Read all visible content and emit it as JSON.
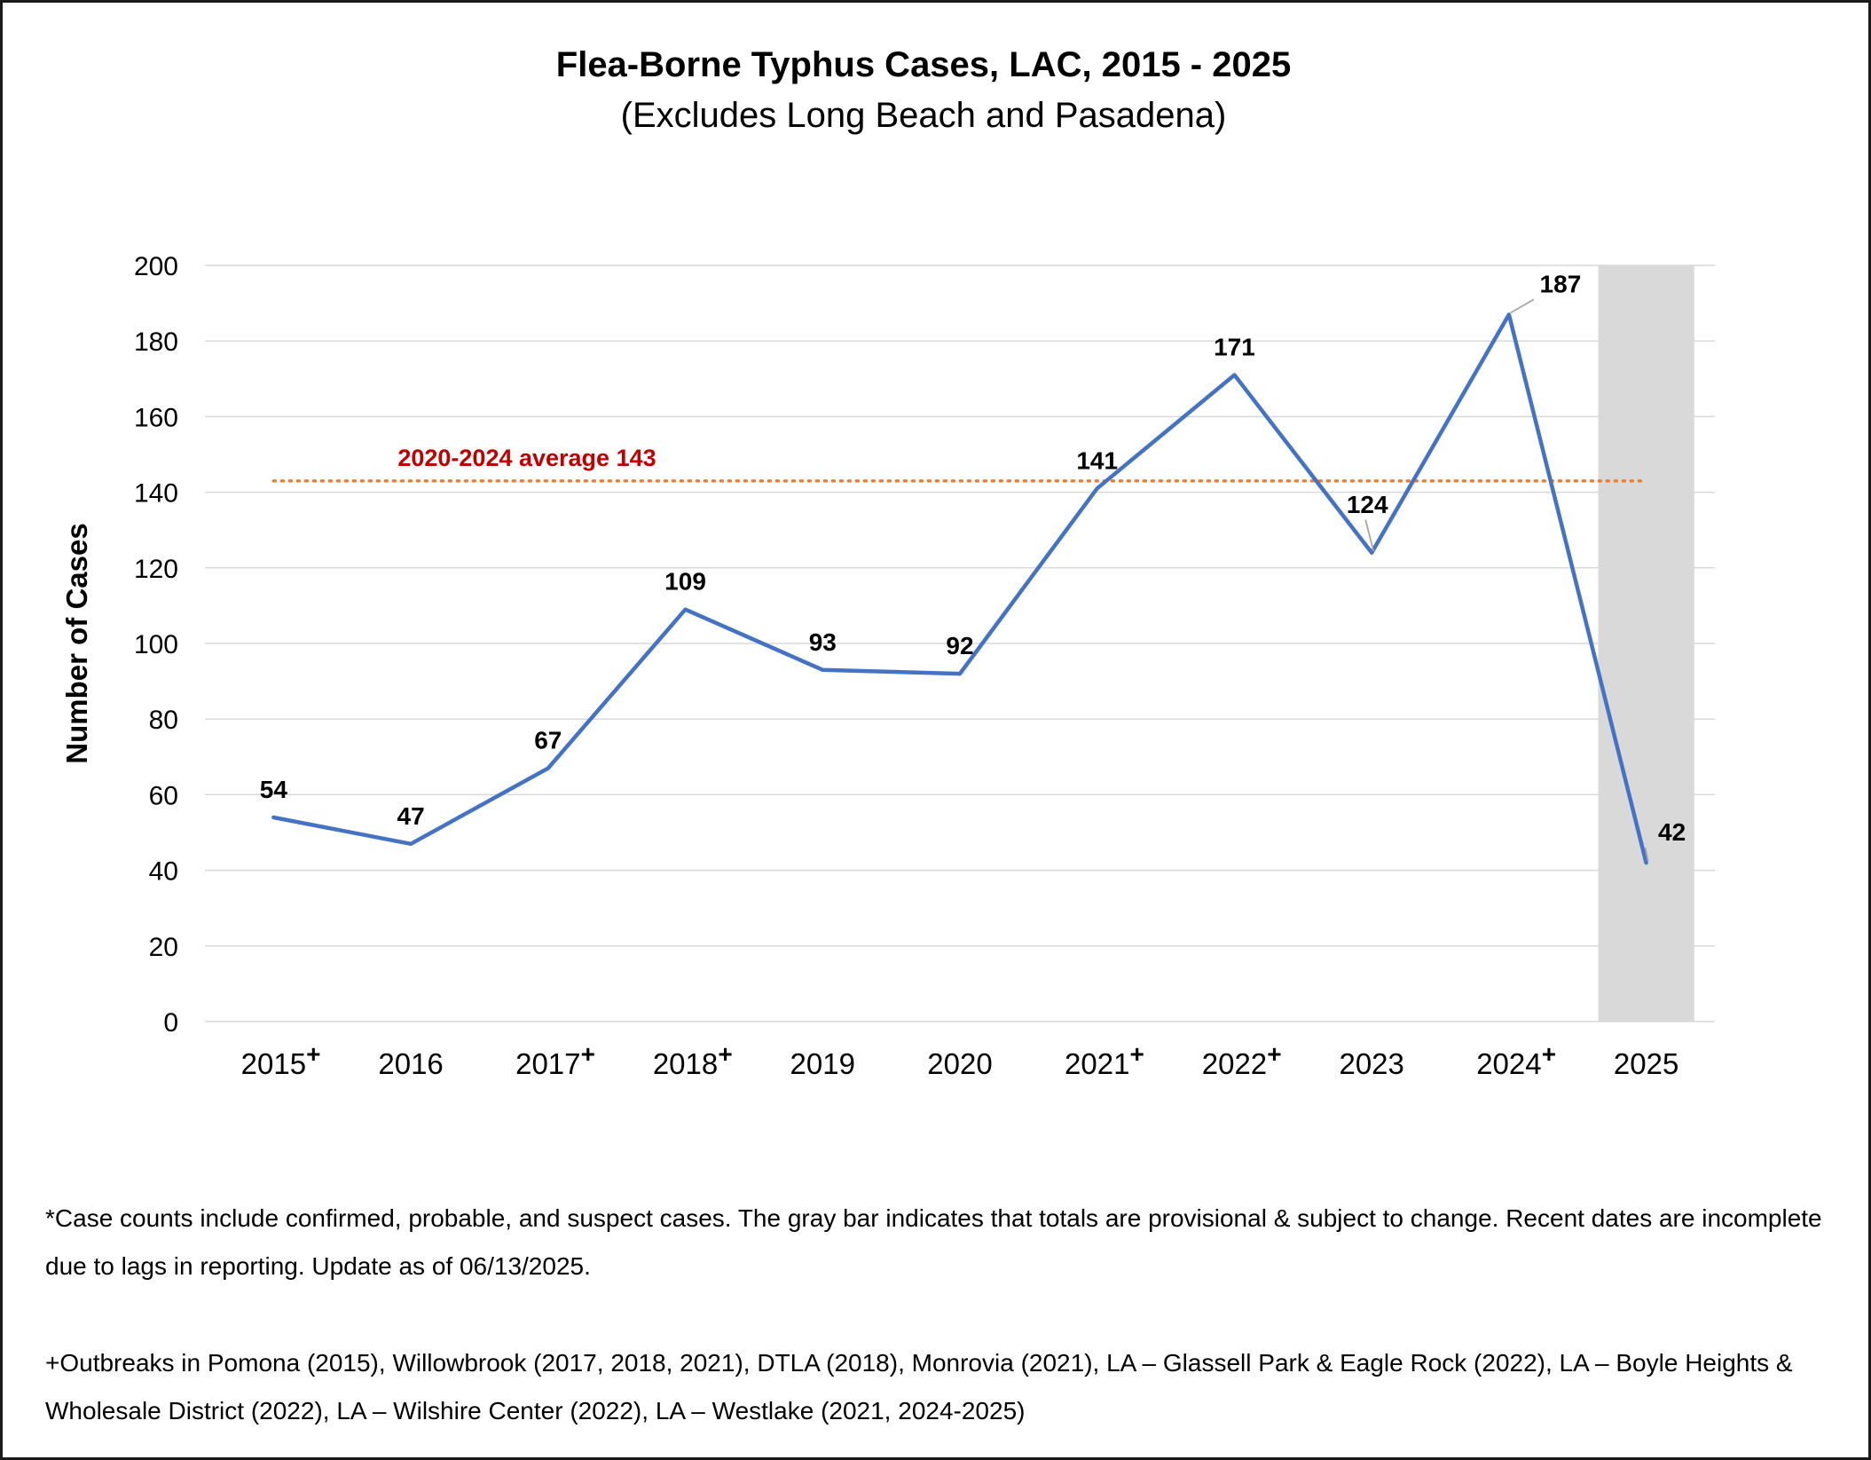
{
  "colors": {
    "line": "#4472C4",
    "average_line": "#ED7D31",
    "average_label": "#C00000",
    "provisional_band": "#D9D9D9",
    "gridline": "#D9D9D9"
  },
  "chart_data": {
    "type": "line",
    "title": "Flea-Borne Typhus Cases, LAC, 2015 - 2025",
    "subtitle": "(Excludes Long Beach and Pasadena)",
    "xlabel": "",
    "ylabel": "Number of Cases",
    "ylim": [
      0,
      200
    ],
    "yticks": [
      0,
      20,
      40,
      60,
      80,
      100,
      120,
      140,
      160,
      180,
      200
    ],
    "grid": "horizontal",
    "categories": [
      "2015",
      "2016",
      "2017",
      "2018",
      "2019",
      "2020",
      "2021",
      "2022",
      "2023",
      "2024",
      "2025"
    ],
    "outbreak_marker": "+",
    "outbreak_years": [
      "2015",
      "2017",
      "2018",
      "2021",
      "2022",
      "2024"
    ],
    "series": [
      {
        "values": [
          54,
          47,
          67,
          109,
          93,
          92,
          141,
          171,
          124,
          187,
          42
        ]
      }
    ],
    "average": {
      "value": 143,
      "label": "2020-2024 average 143",
      "style": "dotted"
    },
    "provisional_category": "2025"
  },
  "notes": {
    "footnote": "*Case counts include confirmed, probable, and suspect cases. The gray bar indicates that totals are provisional & subject to change. Recent dates are incomplete due to lags in reporting. Update as of 06/13/2025.",
    "outbreaks": "+Outbreaks in Pomona (2015), Willowbrook (2017, 2018, 2021), DTLA (2018), Monrovia (2021), LA – Glassell Park & Eagle Rock (2022), LA – Boyle Heights & Wholesale District (2022), LA –  Wilshire Center (2022), LA – Westlake (2021, 2024-2025)"
  }
}
